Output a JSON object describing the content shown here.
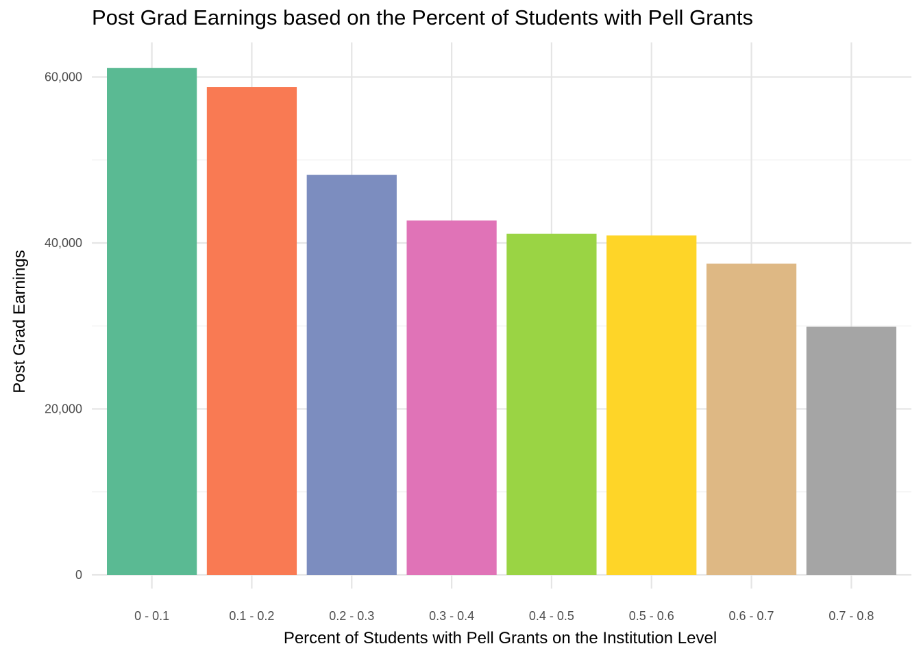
{
  "chart_data": {
    "type": "bar",
    "title": "Post Grad Earnings based on the Percent of Students with Pell Grants",
    "xlabel": "Percent of Students with Pell Grants on the Institution Level",
    "ylabel": "Post Grad Earnings",
    "categories": [
      "0 - 0.1",
      "0.1 - 0.2",
      "0.2 - 0.3",
      "0.3 - 0.4",
      "0.4 - 0.5",
      "0.5 - 0.6",
      "0.6 - 0.7",
      "0.7 - 0.8"
    ],
    "values": [
      61100,
      58800,
      48200,
      42700,
      41100,
      40900,
      37500,
      29900
    ],
    "colors": [
      "#5ABA93",
      "#F97A53",
      "#7C8DBF",
      "#E073B7",
      "#9AD444",
      "#FED528",
      "#DEB884",
      "#A5A5A5"
    ],
    "ylim": [
      0,
      62500
    ],
    "yticks": [
      0,
      20000,
      40000,
      60000
    ],
    "ytick_labels": [
      "0",
      "20,000",
      "40,000",
      "60,000"
    ],
    "grid": true,
    "legend": "none"
  }
}
